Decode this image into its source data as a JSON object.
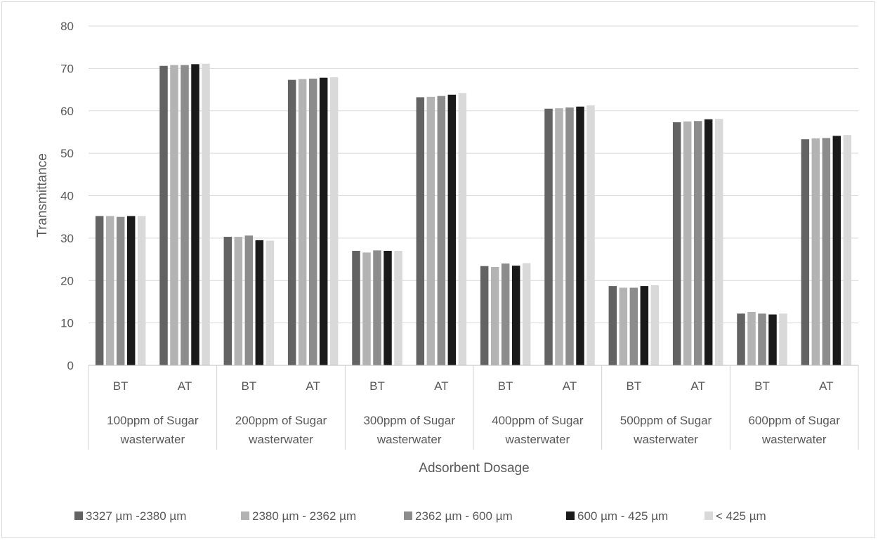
{
  "chart_data": {
    "type": "bar",
    "title": "",
    "xlabel": "Adsorbent Dosage",
    "ylabel": "Transmittance",
    "ylim": [
      0,
      80
    ],
    "yticks": [
      0,
      10,
      20,
      30,
      40,
      50,
      60,
      70,
      80
    ],
    "grid": true,
    "legend_position": "bottom",
    "groups": [
      {
        "label_lines": [
          "100ppm of Sugar",
          "wasterwater"
        ],
        "categories": [
          "BT",
          "AT"
        ]
      },
      {
        "label_lines": [
          "200ppm of Sugar",
          "wasterwater"
        ],
        "categories": [
          "BT",
          "AT"
        ]
      },
      {
        "label_lines": [
          "300ppm of Sugar",
          "wasterwater"
        ],
        "categories": [
          "BT",
          "AT"
        ]
      },
      {
        "label_lines": [
          "400ppm of Sugar",
          "wasterwater"
        ],
        "categories": [
          "BT",
          "AT"
        ]
      },
      {
        "label_lines": [
          "500ppm of Sugar",
          "wasterwater"
        ],
        "categories": [
          "BT",
          "AT"
        ]
      },
      {
        "label_lines": [
          "600ppm of Sugar",
          "wasterwater"
        ],
        "categories": [
          "BT",
          "AT"
        ]
      }
    ],
    "series": [
      {
        "name": "3327 µm -2380 µm",
        "color": "#636363",
        "values": [
          35.2,
          70.6,
          30.3,
          67.3,
          27.0,
          63.2,
          23.4,
          60.5,
          18.7,
          57.3,
          12.2,
          53.3
        ]
      },
      {
        "name": "2380 µm - 2362 µm",
        "color": "#b3b3b3",
        "values": [
          35.2,
          70.8,
          30.3,
          67.5,
          26.6,
          63.3,
          23.2,
          60.6,
          18.3,
          57.5,
          12.6,
          53.5
        ]
      },
      {
        "name": "2362 µm - 600 µm",
        "color": "#8c8c8c",
        "values": [
          35.0,
          70.8,
          30.6,
          67.6,
          27.1,
          63.5,
          24.0,
          60.8,
          18.3,
          57.6,
          12.2,
          53.6
        ]
      },
      {
        "name": "600 µm - 425 µm",
        "color": "#1a1a1a",
        "values": [
          35.2,
          71.0,
          29.5,
          67.8,
          27.0,
          63.8,
          23.5,
          61.0,
          18.7,
          58.0,
          12.0,
          54.1
        ]
      },
      {
        "name": "< 425 µm",
        "color": "#d9d9d9",
        "values": [
          35.2,
          71.1,
          29.4,
          67.9,
          27.0,
          64.2,
          24.1,
          61.3,
          18.9,
          58.1,
          12.2,
          54.3
        ]
      }
    ]
  }
}
